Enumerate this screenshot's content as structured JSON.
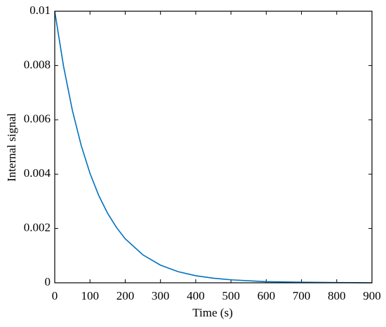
{
  "chart_data": {
    "type": "line",
    "xlabel": "Time (s)",
    "ylabel": "Internal signal",
    "x": [
      0,
      25,
      50,
      75,
      100,
      125,
      150,
      175,
      200,
      250,
      300,
      350,
      400,
      450,
      500,
      600,
      700,
      800,
      900
    ],
    "series": [
      {
        "color": "#0072bd",
        "values": [
          0.01,
          0.00797,
          0.00635,
          0.00506,
          0.00403,
          0.00321,
          0.00256,
          0.00204,
          0.00162,
          0.00103,
          0.00065,
          0.00041,
          0.00026,
          0.00017,
          0.00011,
          4e-05,
          2e-05,
          1e-05,
          0
        ]
      }
    ],
    "xlim": [
      0,
      900
    ],
    "ylim": [
      0,
      0.01
    ],
    "xticks": [
      0,
      100,
      200,
      300,
      400,
      500,
      600,
      700,
      800,
      900
    ],
    "yticks": [
      0,
      0.002,
      0.004,
      0.006,
      0.008,
      0.01
    ],
    "grid": false
  }
}
